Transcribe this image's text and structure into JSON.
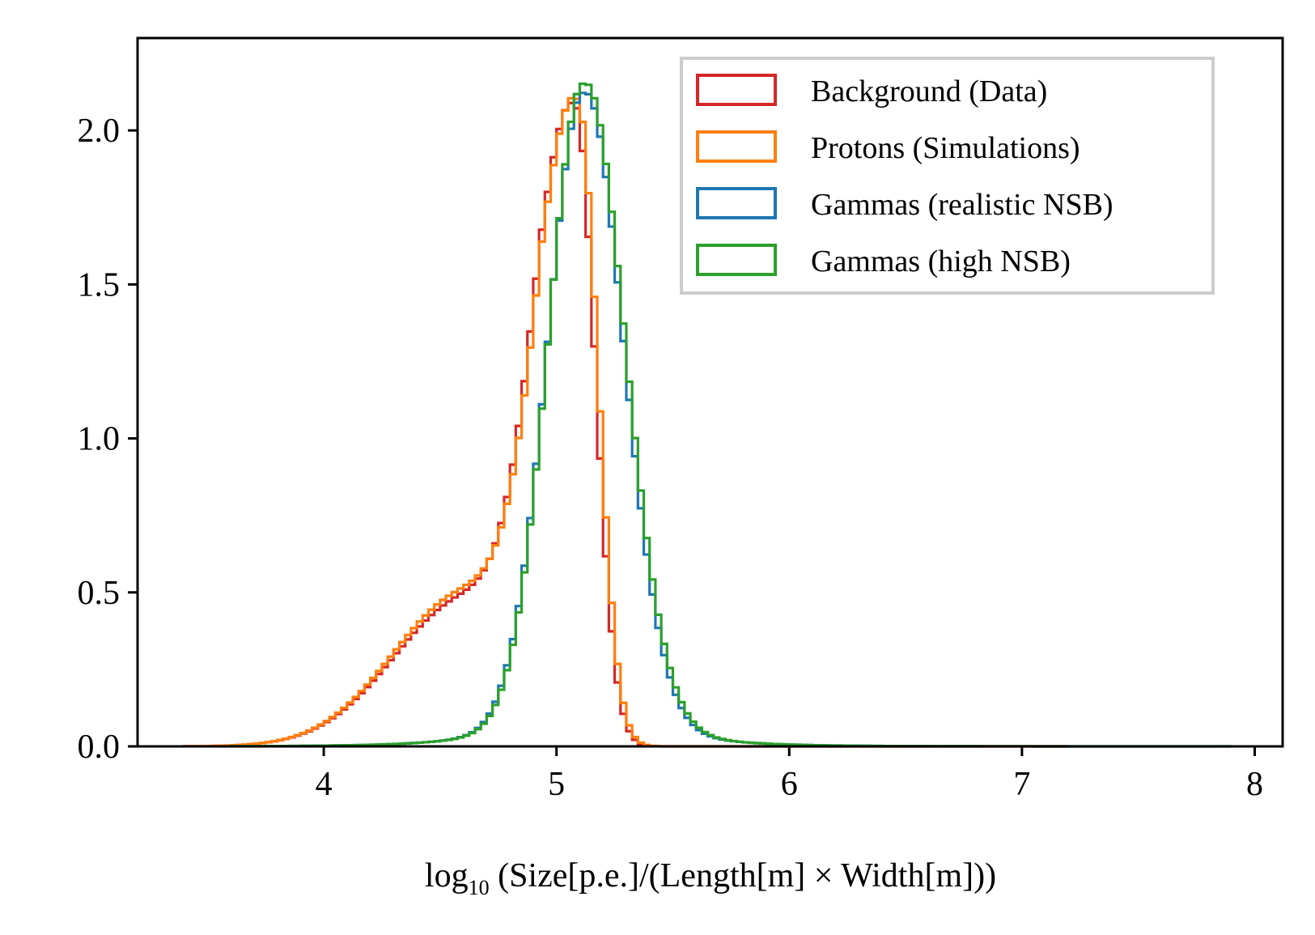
{
  "chart_data": {
    "type": "histogram-step",
    "xlabel": {
      "prefix": "log",
      "subscript": "10",
      "rest": " (Size[p.e.]/(Length[m] × Width[m]))"
    },
    "ylabel": "",
    "xlim": [
      3.2,
      8.12
    ],
    "ylim": [
      0,
      2.3
    ],
    "xticks": [
      4,
      5,
      6,
      7,
      8
    ],
    "xtick_labels": [
      "4",
      "5",
      "6",
      "7",
      "8"
    ],
    "yticks": [
      0,
      0.5,
      1.0,
      1.5,
      2.0
    ],
    "ytick_labels": [
      "0.0",
      "0.5",
      "1.0",
      "1.5",
      "2.0"
    ],
    "legend_position": "top-right",
    "bin_width": 0.025,
    "series": [
      {
        "name": "Background (Data)",
        "color": "#d62728",
        "model": {
          "mu": 5.08,
          "sigma_left": 0.16,
          "sigma_right": 0.085,
          "peak": 2.08,
          "shoulder_amp": 0.48,
          "shoulder_mu": 4.62,
          "shoulder_sigma": 0.32,
          "x_min": 3.4,
          "x_max": 7.2
        }
      },
      {
        "name": "Protons (Simulations)",
        "color": "#ff7f0e",
        "model": {
          "mu": 5.09,
          "sigma_left": 0.16,
          "sigma_right": 0.085,
          "peak": 2.1,
          "shoulder_amp": 0.5,
          "shoulder_mu": 4.62,
          "shoulder_sigma": 0.32,
          "x_min": 3.4,
          "x_max": 7.2
        }
      },
      {
        "name": "Gammas (realistic NSB)",
        "color": "#1f77b4",
        "model": {
          "mu": 5.12,
          "sigma_left": 0.155,
          "sigma_right": 0.165,
          "peak": 2.12,
          "tail_amp": 0.05,
          "tail_scale": 0.25,
          "left_tail_amp": 0.05,
          "left_tail_scale": 0.25,
          "x_min": 3.6,
          "x_max": 7.9
        }
      },
      {
        "name": "Gammas (high NSB)",
        "color": "#2ca02c",
        "model": {
          "mu": 5.12,
          "sigma_left": 0.152,
          "sigma_right": 0.17,
          "peak": 2.15,
          "tail_amp": 0.05,
          "tail_scale": 0.25,
          "left_tail_amp": 0.05,
          "left_tail_scale": 0.25,
          "x_min": 3.6,
          "x_max": 7.9
        }
      }
    ]
  }
}
